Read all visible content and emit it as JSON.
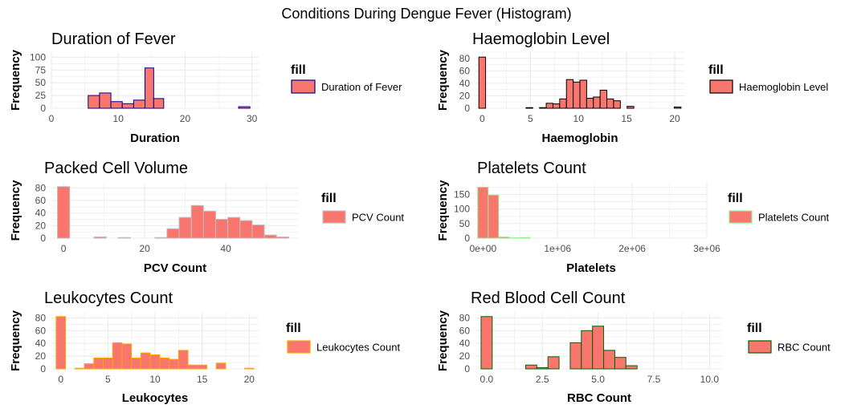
{
  "page_title": "Conditions During Dengue Fever (Histogram)",
  "legend_heading": "fill",
  "colors": {
    "bar_fill": "#F8766D",
    "grid": "#EBEBEB",
    "text": "#000000",
    "tick_text": "#4D4D4D"
  },
  "chart_data": [
    {
      "id": "duration",
      "type": "bar",
      "title": "Duration of Fever",
      "xlabel": "Duration",
      "ylabel": "Frequency",
      "legend_label": "Duration of Fever",
      "outline_color": "#00008B",
      "xlim": [
        0,
        31
      ],
      "ylim": [
        0,
        110
      ],
      "xticks": [
        0,
        10,
        20,
        30
      ],
      "yticks": [
        0,
        25,
        50,
        75,
        100
      ],
      "bins": [
        {
          "x0": 0.5,
          "x1": 1.5,
          "y": 0
        },
        {
          "x0": 1.5,
          "x1": 2.5,
          "y": 0
        },
        {
          "x0": 2.5,
          "x1": 3.5,
          "y": 0
        },
        {
          "x0": 3.5,
          "x1": 4.5,
          "y": 0
        },
        {
          "x0": 4.5,
          "x1": 5.5,
          "y": 0
        },
        {
          "x0": 5.5,
          "x1": 7.2,
          "y": 25
        },
        {
          "x0": 7.2,
          "x1": 8.9,
          "y": 30
        },
        {
          "x0": 8.9,
          "x1": 10.6,
          "y": 13
        },
        {
          "x0": 10.6,
          "x1": 12.3,
          "y": 9
        },
        {
          "x0": 12.3,
          "x1": 14.0,
          "y": 16
        },
        {
          "x0": 14.0,
          "x1": 15.3,
          "y": 79
        },
        {
          "x0": 15.3,
          "x1": 16.8,
          "y": 19
        },
        {
          "x0": 16.8,
          "x1": 28.0,
          "y": 0
        },
        {
          "x0": 28.0,
          "x1": 29.7,
          "y": 3
        }
      ]
    },
    {
      "id": "haemoglobin",
      "type": "bar",
      "title": "Haemoglobin Level",
      "xlabel": "Haemoglobin",
      "ylabel": "Frequency",
      "legend_label": "Haemoglobin Level",
      "outline_color": "#000000",
      "xlim": [
        -0.7,
        21
      ],
      "ylim": [
        0,
        90
      ],
      "xticks": [
        0,
        5,
        10,
        15,
        20
      ],
      "yticks": [
        0,
        20,
        40,
        60,
        80
      ],
      "bins": [
        {
          "x0": -0.35,
          "x1": 0.35,
          "y": 82
        },
        {
          "x0": 0.35,
          "x1": 4.55,
          "y": 0
        },
        {
          "x0": 4.55,
          "x1": 5.25,
          "y": 1
        },
        {
          "x0": 5.25,
          "x1": 5.95,
          "y": 0
        },
        {
          "x0": 5.95,
          "x1": 6.65,
          "y": 1
        },
        {
          "x0": 6.65,
          "x1": 7.35,
          "y": 8
        },
        {
          "x0": 7.35,
          "x1": 8.05,
          "y": 7
        },
        {
          "x0": 8.05,
          "x1": 8.75,
          "y": 15
        },
        {
          "x0": 8.75,
          "x1": 9.45,
          "y": 46
        },
        {
          "x0": 9.45,
          "x1": 10.15,
          "y": 42
        },
        {
          "x0": 10.15,
          "x1": 10.85,
          "y": 45
        },
        {
          "x0": 10.85,
          "x1": 11.55,
          "y": 16
        },
        {
          "x0": 11.55,
          "x1": 12.25,
          "y": 18
        },
        {
          "x0": 12.25,
          "x1": 12.95,
          "y": 29
        },
        {
          "x0": 12.95,
          "x1": 13.65,
          "y": 15
        },
        {
          "x0": 13.65,
          "x1": 14.35,
          "y": 12
        },
        {
          "x0": 14.35,
          "x1": 15.05,
          "y": 0
        },
        {
          "x0": 15.05,
          "x1": 15.75,
          "y": 3
        },
        {
          "x0": 15.75,
          "x1": 19.95,
          "y": 0
        },
        {
          "x0": 19.95,
          "x1": 20.65,
          "y": 2
        }
      ]
    },
    {
      "id": "pcv",
      "type": "bar",
      "title": "Packed Cell Volume",
      "xlabel": "PCV Count",
      "ylabel": "Frequency",
      "legend_label": "PCV Count",
      "outline_color": "#BEBEBE",
      "xlim": [
        -3,
        58
      ],
      "ylim": [
        0,
        88
      ],
      "xticks": [
        0,
        20,
        40
      ],
      "yticks": [
        0,
        20,
        40,
        60,
        80
      ],
      "bins": [
        {
          "x0": -1.5,
          "x1": 1.5,
          "y": 82
        },
        {
          "x0": 1.5,
          "x1": 7.5,
          "y": 0
        },
        {
          "x0": 7.5,
          "x1": 10.5,
          "y": 2
        },
        {
          "x0": 10.5,
          "x1": 13.5,
          "y": 0
        },
        {
          "x0": 13.5,
          "x1": 16.5,
          "y": 1
        },
        {
          "x0": 16.5,
          "x1": 22.5,
          "y": 0
        },
        {
          "x0": 22.5,
          "x1": 25.5,
          "y": 1
        },
        {
          "x0": 25.5,
          "x1": 28.5,
          "y": 15
        },
        {
          "x0": 28.5,
          "x1": 31.5,
          "y": 33
        },
        {
          "x0": 31.5,
          "x1": 34.5,
          "y": 52
        },
        {
          "x0": 34.5,
          "x1": 37.5,
          "y": 43
        },
        {
          "x0": 37.5,
          "x1": 40.5,
          "y": 30
        },
        {
          "x0": 40.5,
          "x1": 43.5,
          "y": 33
        },
        {
          "x0": 43.5,
          "x1": 46.5,
          "y": 28
        },
        {
          "x0": 46.5,
          "x1": 49.5,
          "y": 21
        },
        {
          "x0": 49.5,
          "x1": 52.5,
          "y": 5
        },
        {
          "x0": 52.5,
          "x1": 55.5,
          "y": 2
        }
      ]
    },
    {
      "id": "platelets",
      "type": "bar",
      "title": "Platelets Count",
      "xlabel": "Platelets",
      "ylabel": "Frequency",
      "legend_label": "Platelets Count",
      "outline_color": "#90EE90",
      "xlim": [
        -100000,
        3000000
      ],
      "ylim": [
        0,
        190
      ],
      "xticks": [
        0,
        1000000,
        2000000,
        3000000
      ],
      "xtick_labels": [
        "0e+00",
        "1e+06",
        "2e+06",
        "3e+06"
      ],
      "yticks": [
        0,
        50,
        100,
        150
      ],
      "bins": [
        {
          "x0": -70000,
          "x1": 70000,
          "y": 175
        },
        {
          "x0": 70000,
          "x1": 210000,
          "y": 148
        },
        {
          "x0": 210000,
          "x1": 350000,
          "y": 4
        },
        {
          "x0": 350000,
          "x1": 490000,
          "y": 1
        },
        {
          "x0": 490000,
          "x1": 630000,
          "y": 2
        },
        {
          "x0": 630000,
          "x1": 2870000,
          "y": 0
        }
      ]
    },
    {
      "id": "leukocytes",
      "type": "bar",
      "title": "Leukocytes Count",
      "xlabel": "Leukocytes",
      "ylabel": "Frequency",
      "legend_label": "Leukocytes Count",
      "outline_color": "#FFA500",
      "xlim": [
        -1,
        21
      ],
      "ylim": [
        0,
        88
      ],
      "xticks": [
        0,
        5,
        10,
        15,
        20
      ],
      "yticks": [
        0,
        20,
        40,
        60,
        80
      ],
      "bins": [
        {
          "x0": -0.5,
          "x1": 0.5,
          "y": 82
        },
        {
          "x0": 0.5,
          "x1": 1.5,
          "y": 0
        },
        {
          "x0": 1.5,
          "x1": 2.5,
          "y": 1
        },
        {
          "x0": 2.5,
          "x1": 3.5,
          "y": 8
        },
        {
          "x0": 3.5,
          "x1": 4.5,
          "y": 17
        },
        {
          "x0": 4.5,
          "x1": 5.5,
          "y": 17
        },
        {
          "x0": 5.5,
          "x1": 6.5,
          "y": 41
        },
        {
          "x0": 6.5,
          "x1": 7.5,
          "y": 39
        },
        {
          "x0": 7.5,
          "x1": 8.5,
          "y": 17
        },
        {
          "x0": 8.5,
          "x1": 9.5,
          "y": 25
        },
        {
          "x0": 9.5,
          "x1": 10.5,
          "y": 22
        },
        {
          "x0": 10.5,
          "x1": 11.5,
          "y": 17
        },
        {
          "x0": 11.5,
          "x1": 12.5,
          "y": 15
        },
        {
          "x0": 12.5,
          "x1": 13.5,
          "y": 29
        },
        {
          "x0": 13.5,
          "x1": 14.5,
          "y": 6
        },
        {
          "x0": 14.5,
          "x1": 15.5,
          "y": 6
        },
        {
          "x0": 15.5,
          "x1": 16.5,
          "y": 0
        },
        {
          "x0": 16.5,
          "x1": 17.5,
          "y": 9
        },
        {
          "x0": 17.5,
          "x1": 19.5,
          "y": 0
        },
        {
          "x0": 19.5,
          "x1": 20.5,
          "y": 1
        }
      ]
    },
    {
      "id": "rbc",
      "type": "bar",
      "title": "Red Blood Cell Count",
      "xlabel": "RBC Count",
      "ylabel": "Frequency",
      "legend_label": "RBC Count",
      "outline_color": "#006400",
      "xlim": [
        -0.5,
        10.6
      ],
      "ylim": [
        0,
        88
      ],
      "xticks": [
        0,
        2.5,
        5,
        7.5,
        10
      ],
      "xtick_labels": [
        "0.0",
        "2.5",
        "5.0",
        "7.5",
        "10.0"
      ],
      "yticks": [
        0,
        20,
        40,
        60,
        80
      ],
      "bins": [
        {
          "x0": -0.25,
          "x1": 0.25,
          "y": 82
        },
        {
          "x0": 0.25,
          "x1": 1.75,
          "y": 0
        },
        {
          "x0": 1.75,
          "x1": 2.25,
          "y": 6
        },
        {
          "x0": 2.25,
          "x1": 2.75,
          "y": 2
        },
        {
          "x0": 2.75,
          "x1": 3.25,
          "y": 19
        },
        {
          "x0": 3.25,
          "x1": 3.75,
          "y": 0
        },
        {
          "x0": 3.75,
          "x1": 4.25,
          "y": 41
        },
        {
          "x0": 4.25,
          "x1": 4.75,
          "y": 60
        },
        {
          "x0": 4.75,
          "x1": 5.25,
          "y": 67
        },
        {
          "x0": 5.25,
          "x1": 5.75,
          "y": 29
        },
        {
          "x0": 5.75,
          "x1": 6.25,
          "y": 18
        },
        {
          "x0": 6.25,
          "x1": 6.75,
          "y": 5
        },
        {
          "x0": 6.75,
          "x1": 10.25,
          "y": 0
        }
      ]
    }
  ]
}
